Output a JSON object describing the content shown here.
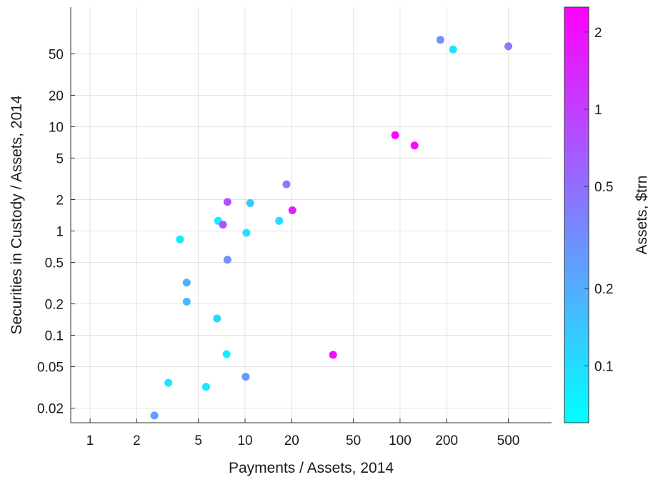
{
  "chart_data": {
    "type": "scatter",
    "title": "",
    "xlabel": "Payments / Assets, 2014",
    "ylabel": "Securities in Custody / Assets, 2014",
    "xscale": "log",
    "yscale": "log",
    "xlim": [
      0.75,
      950
    ],
    "ylim": [
      0.0145,
      140
    ],
    "xticks": [
      1,
      2,
      5,
      10,
      20,
      50,
      100,
      200,
      500
    ],
    "xtick_labels": [
      "1",
      "2",
      "5",
      "10",
      "20",
      "50",
      "100",
      "200",
      "500"
    ],
    "yticks": [
      0.02,
      0.05,
      0.1,
      0.2,
      0.5,
      1,
      2,
      5,
      10,
      20,
      50
    ],
    "ytick_labels": [
      "0.02",
      "0.05",
      "0.1",
      "0.2",
      "0.5",
      "1",
      "2",
      "5",
      "10",
      "20",
      "50"
    ],
    "grid": true,
    "colorbar": {
      "label": "Assets, $trn",
      "scale": "log",
      "lim": [
        0.06,
        2.5
      ],
      "ticks": [
        0.1,
        0.2,
        0.5,
        1,
        2
      ],
      "tick_labels": [
        "0.1",
        "0.2",
        "0.5",
        "1",
        "2"
      ],
      "color_low": "#00ffff",
      "color_high": "#ff00ff"
    },
    "points": [
      {
        "x": 2.6,
        "y": 0.017,
        "c": 0.25
      },
      {
        "x": 3.2,
        "y": 0.035,
        "c": 0.09
      },
      {
        "x": 3.8,
        "y": 0.83,
        "c": 0.08
      },
      {
        "x": 4.2,
        "y": 0.32,
        "c": 0.19
      },
      {
        "x": 4.2,
        "y": 0.21,
        "c": 0.17
      },
      {
        "x": 5.6,
        "y": 0.032,
        "c": 0.09
      },
      {
        "x": 6.6,
        "y": 0.145,
        "c": 0.11
      },
      {
        "x": 6.7,
        "y": 1.25,
        "c": 0.08
      },
      {
        "x": 7.2,
        "y": 1.15,
        "c": 0.75
      },
      {
        "x": 7.6,
        "y": 0.066,
        "c": 0.07
      },
      {
        "x": 7.7,
        "y": 1.9,
        "c": 0.8
      },
      {
        "x": 7.7,
        "y": 0.53,
        "c": 0.3
      },
      {
        "x": 10.1,
        "y": 0.04,
        "c": 0.27
      },
      {
        "x": 10.2,
        "y": 0.96,
        "c": 0.09
      },
      {
        "x": 10.8,
        "y": 1.85,
        "c": 0.13
      },
      {
        "x": 16.6,
        "y": 1.25,
        "c": 0.1
      },
      {
        "x": 18.5,
        "y": 2.8,
        "c": 0.4
      },
      {
        "x": 20.2,
        "y": 1.58,
        "c": 1.6
      },
      {
        "x": 37.0,
        "y": 0.065,
        "c": 2.1
      },
      {
        "x": 93.0,
        "y": 8.3,
        "c": 2.2
      },
      {
        "x": 124.0,
        "y": 6.6,
        "c": 2.2
      },
      {
        "x": 182.0,
        "y": 68.0,
        "c": 0.3
      },
      {
        "x": 220.0,
        "y": 55.0,
        "c": 0.09
      },
      {
        "x": 500.0,
        "y": 59.0,
        "c": 0.4
      }
    ]
  }
}
